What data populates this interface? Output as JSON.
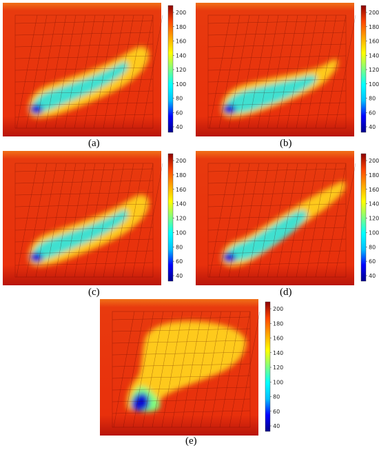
{
  "figure": {
    "panels": [
      {
        "id": "a",
        "caption": "(a)",
        "variant": "a"
      },
      {
        "id": "b",
        "caption": "(b)",
        "variant": "b"
      },
      {
        "id": "c",
        "caption": "(c)",
        "variant": "a"
      },
      {
        "id": "d",
        "caption": "(d)",
        "variant": "d"
      },
      {
        "id": "e",
        "caption": "(e)",
        "variant": "e"
      }
    ],
    "colorbar_ticks": [
      "200",
      "180",
      "160",
      "140",
      "120",
      "100",
      "80",
      "60",
      "40"
    ],
    "colormap": [
      "#00008b",
      "#0000ff",
      "#00bfff",
      "#00ffff",
      "#7fff7f",
      "#ffff00",
      "#ffa500",
      "#ff4500",
      "#8b0000"
    ],
    "background_color": "#e8300c"
  }
}
